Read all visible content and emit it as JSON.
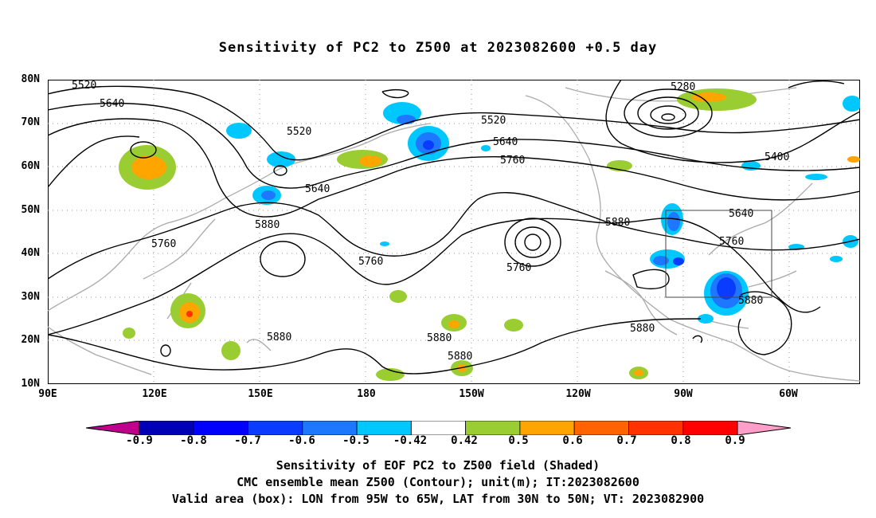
{
  "title": "Sensitivity of PC2 to Z500 at 2023082600 +0.5 day",
  "map": {
    "lat_labels": [
      "80N",
      "70N",
      "60N",
      "50N",
      "40N",
      "30N",
      "20N",
      "10N"
    ],
    "lon_labels": [
      "90E",
      "120E",
      "150E",
      "180",
      "150W",
      "120W",
      "90W",
      "60W"
    ],
    "contour_labels": [
      "5520",
      "5640",
      "5520",
      "5640",
      "5880",
      "5760",
      "5520",
      "5640",
      "5760",
      "5760",
      "5880",
      "5880",
      "5880",
      "5880",
      "5280",
      "5400",
      "5640",
      "5760",
      "5880",
      "5880",
      "5760"
    ],
    "valid_box": {
      "lon_range": [
        "95W",
        "65W"
      ],
      "lat_range": [
        "30N",
        "50N"
      ]
    }
  },
  "colorbar": {
    "labels": [
      "-0.9",
      "-0.8",
      "-0.7",
      "-0.6",
      "-0.5",
      "-0.42",
      "0.42",
      "0.5",
      "0.6",
      "0.7",
      "0.8",
      "0.9"
    ],
    "colors": [
      "#c0008c",
      "#0000b4",
      "#0000ff",
      "#0a3cff",
      "#1e78ff",
      "#00c8ff",
      "#ffffff",
      "#9acd32",
      "#ffa500",
      "#ff6400",
      "#ff3200",
      "#ff0000",
      "#ff9ec8"
    ]
  },
  "captions": {
    "line1": "Sensitivity of EOF PC2 to Z500 field (Shaded)",
    "line2": "CMC ensemble mean Z500 (Contour); unit(m); IT:2023082600",
    "line3": "Valid area (box): LON from 95W to 65W, LAT from 30N to 50N; VT: 2023082900"
  }
}
